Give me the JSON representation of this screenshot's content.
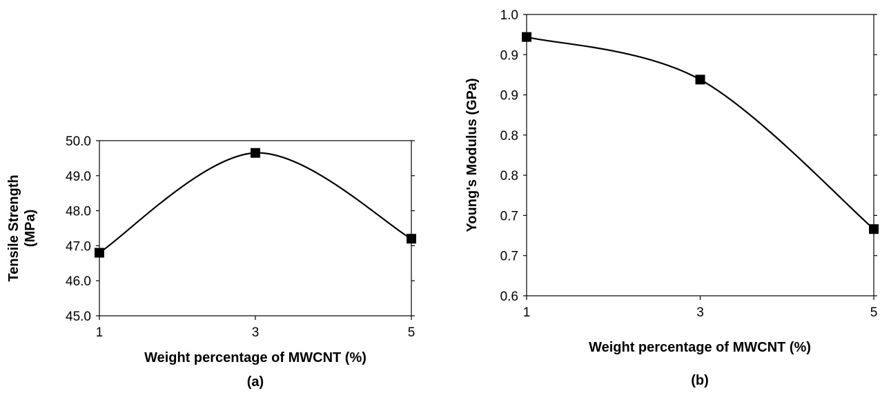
{
  "chart_data": [
    {
      "type": "line",
      "panel_label": "(a)",
      "xlabel": "Weight percentage of MWCNT (%)",
      "ylabel_lines": [
        "Tensile Strength",
        "(MPa)"
      ],
      "x": [
        1,
        3,
        5
      ],
      "xticks": [
        "1",
        "3",
        "5"
      ],
      "yticks": [
        "45.0",
        "46.0",
        "47.0",
        "48.0",
        "49.0",
        "50.0"
      ],
      "ylim": [
        45.0,
        50.0
      ],
      "series": [
        {
          "values": [
            46.8,
            49.65,
            47.2
          ]
        }
      ],
      "smooth": true,
      "marker": "square",
      "grid": false
    },
    {
      "type": "line",
      "panel_label": "(b)",
      "xlabel": "Weight percentage of MWCNT (%)",
      "ylabel_lines": [
        "Young's Modulus (GPa)"
      ],
      "x": [
        1,
        3,
        5
      ],
      "xticks": [
        "1",
        "3",
        "5"
      ],
      "yticks": [
        "0.6",
        "0.7",
        "0.7",
        "0.8",
        "0.8",
        "0.9",
        "0.9",
        "1.0"
      ],
      "ylim": [
        0.6,
        0.95
      ],
      "series": [
        {
          "values": [
            0.922,
            0.869,
            0.683
          ]
        }
      ],
      "smooth": true,
      "marker": "square",
      "grid": false
    }
  ]
}
